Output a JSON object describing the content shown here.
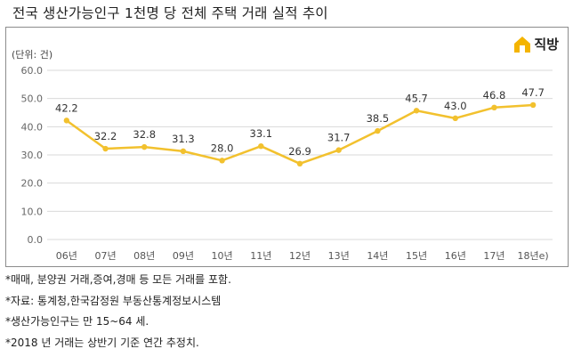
{
  "title": "전국 생산가능인구 1천명 당 전체 주택 거래 실적 추이",
  "brand": {
    "name": "직방",
    "icon": "house-logo-icon",
    "color": "#f4b400"
  },
  "chart_data": {
    "type": "line",
    "unit_label": "(단위: 건)",
    "categories": [
      "06년",
      "07년",
      "08년",
      "09년",
      "10년",
      "11년",
      "12년",
      "13년",
      "14년",
      "15년",
      "16년",
      "17년",
      "18년e)"
    ],
    "values": [
      42.2,
      32.2,
      32.8,
      31.3,
      28.0,
      33.1,
      26.9,
      31.7,
      38.5,
      45.7,
      43.0,
      46.8,
      47.7
    ],
    "value_labels": [
      "42.2",
      "32.2",
      "32.8",
      "31.3",
      "28.0",
      "33.1",
      "26.9",
      "31.7",
      "38.5",
      "45.7",
      "43.0",
      "46.8",
      "47.7"
    ],
    "ylim": [
      0,
      60
    ],
    "yticks": [
      0,
      10,
      20,
      30,
      40,
      50,
      60
    ],
    "ytick_labels": [
      "0.0",
      "10.0",
      "20.0",
      "30.0",
      "40.0",
      "50.0",
      "60.0"
    ],
    "grid": true,
    "line_color": "#f2c12e",
    "grid_color": "#d9d9d9"
  },
  "notes": [
    "*매매, 분양권 거래,증여,경매 등 모든 거래를 포함.",
    "*자료: 통계청,한국감정원 부동산통계정보시스템",
    "*생산가능인구는 만 15~64 세.",
    "*2018 년 거래는 상반기 기준 연간 추정치."
  ]
}
